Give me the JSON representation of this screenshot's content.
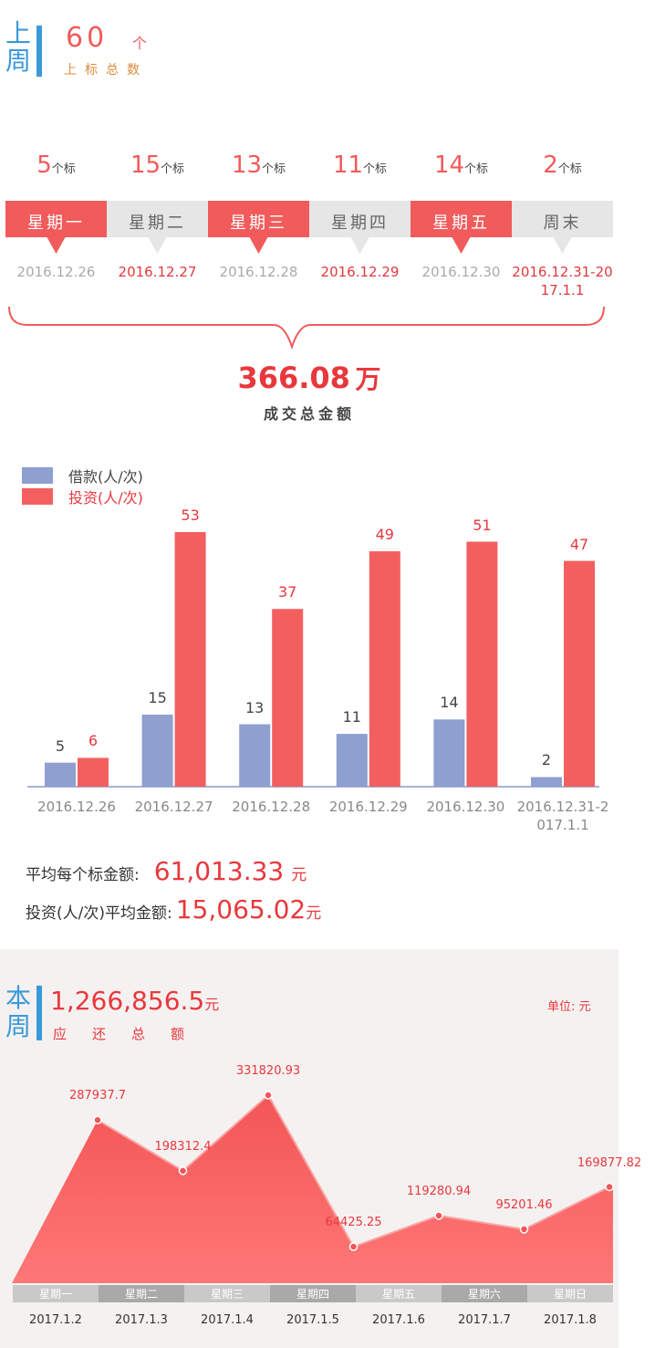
{
  "last_week": {
    "label": "上周",
    "count": 60,
    "unit": "个",
    "caption": "上标总数"
  },
  "days": [
    {
      "count": 5,
      "unit": "个标",
      "day": "星期一",
      "date": "2016.12.26"
    },
    {
      "count": 15,
      "unit": "个标",
      "day": "星期二",
      "date": "2016.12.27"
    },
    {
      "count": 13,
      "unit": "个标",
      "day": "星期三",
      "date": "2016.12.28"
    },
    {
      "count": 11,
      "unit": "个标",
      "day": "星期四",
      "date": "2016.12.29"
    },
    {
      "count": 14,
      "unit": "个标",
      "day": "星期五",
      "date": "2016.12.30"
    },
    {
      "count": 2,
      "unit": "个标",
      "day": "周末",
      "date": "2016.12.31-2017.1.1"
    }
  ],
  "deal_total": {
    "value": 366.08,
    "unit": "万",
    "caption": "成交总金额"
  },
  "chart_data": [
    {
      "type": "bar",
      "categories": [
        "2016.12.26",
        "2016.12.27",
        "2016.12.28",
        "2016.12.29",
        "2016.12.30",
        "2016.12.31-2017.1.1"
      ],
      "series": [
        {
          "name": "借款(人/次)",
          "color": "#8e9fd0",
          "values": [
            5,
            15,
            13,
            11,
            14,
            2
          ]
        },
        {
          "name": "投资(人/次)",
          "color": "#f35f5f",
          "values": [
            6,
            53,
            37,
            49,
            51,
            47
          ]
        }
      ]
    },
    {
      "type": "area",
      "categories": [
        "星期一",
        "星期二",
        "星期三",
        "星期四",
        "星期五",
        "星期六",
        "星期日"
      ],
      "dates": [
        "2017.1.2",
        "2017.1.3",
        "2017.1.4",
        "2017.1.5",
        "2017.1.6",
        "2017.1.7",
        "2017.1.8"
      ],
      "values": [
        287937.7,
        198312.4,
        331820.93,
        64425.25,
        119280.94,
        95201.46,
        169877.82
      ],
      "color": "#f35555"
    }
  ],
  "stats": [
    {
      "label": "平均每个标金额:",
      "value": "61,013.33",
      "unit": "元"
    },
    {
      "label": "投资(人/次)平均金额:",
      "value": "15,065.02",
      "unit": "元"
    }
  ],
  "this_week": {
    "label": "本周",
    "amount": "1,266,856.5",
    "unit": "元",
    "caption": "应还总额",
    "unit_note": "单位: 元"
  }
}
